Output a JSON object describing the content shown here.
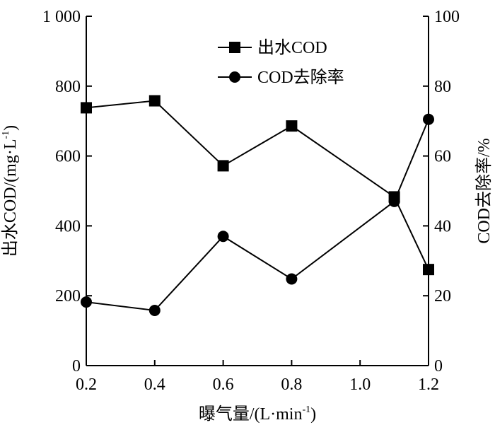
{
  "chart_data": {
    "type": "line",
    "x": [
      0.2,
      0.4,
      0.6,
      0.8,
      1.1,
      1.2
    ],
    "xlabel": "曝气量/(L·min",
    "xlabel_sup": "-1",
    "xlabel_tail": ")",
    "xlim": [
      0.2,
      1.2
    ],
    "xticks": [
      "0.2",
      "0.4",
      "0.6",
      "0.8",
      "1.0",
      "1.2"
    ],
    "xtick_values": [
      0.2,
      0.4,
      0.6,
      0.8,
      1.0,
      1.2
    ],
    "ylabel_left": "出水COD/(mg·L",
    "ylabel_left_sup": "-1",
    "ylabel_left_tail": ")",
    "ylim_left": [
      0,
      1000
    ],
    "yticks_left": [
      "0",
      "200",
      "400",
      "600",
      "800",
      "1 000"
    ],
    "ytick_values_left": [
      0,
      200,
      400,
      600,
      800,
      1000
    ],
    "ylabel_right": "COD去除率/%",
    "ylim_right": [
      0,
      100
    ],
    "yticks_right": [
      "0",
      "20",
      "40",
      "60",
      "80",
      "100"
    ],
    "ytick_values_right": [
      0,
      20,
      40,
      60,
      80,
      100
    ],
    "legend_position": "top-center",
    "grid": false,
    "series": [
      {
        "name": "出水COD",
        "axis": "left",
        "marker": "square",
        "values": [
          738,
          758,
          572,
          686,
          483,
          275
        ]
      },
      {
        "name": "COD去除率",
        "axis": "right",
        "marker": "circle",
        "values": [
          18.2,
          15.8,
          37.0,
          24.8,
          47.0,
          70.5
        ]
      }
    ]
  }
}
